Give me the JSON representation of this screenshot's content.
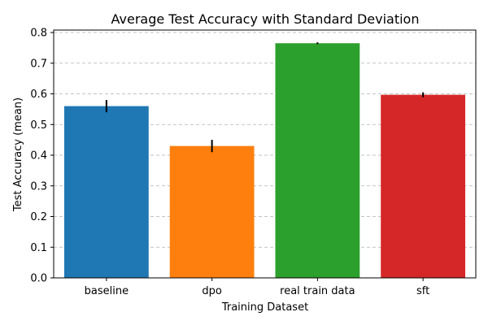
{
  "chart_data": {
    "type": "bar",
    "title": "Average Test Accuracy with Standard Deviation",
    "xlabel": "Training Dataset",
    "ylabel": "Test Accuracy (mean)",
    "categories": [
      "baseline",
      "dpo",
      "real train data",
      "sft"
    ],
    "values": [
      0.56,
      0.43,
      0.765,
      0.597
    ],
    "errors": [
      0.02,
      0.02,
      0.003,
      0.008
    ],
    "colors": [
      "#1f77b4",
      "#ff7f0e",
      "#2ca02c",
      "#d62728"
    ],
    "ylim": [
      0,
      0.8
    ],
    "yticks": [
      0.0,
      0.1,
      0.2,
      0.3,
      0.4,
      0.5,
      0.6,
      0.7,
      0.8
    ],
    "ytick_labels": [
      "0.0",
      "0.1",
      "0.2",
      "0.3",
      "0.4",
      "0.5",
      "0.6",
      "0.7",
      "0.8"
    ],
    "grid": "y-dashed",
    "legend": "none"
  }
}
